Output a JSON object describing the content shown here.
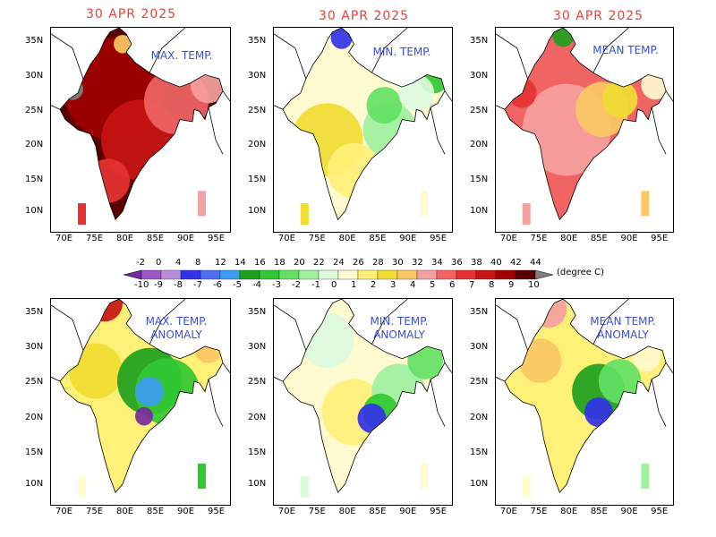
{
  "dates": [
    "30 APR 2025",
    "30 APR 2025",
    "30 APR 2025"
  ],
  "panels": [
    {
      "title": "MAX. TEMP.",
      "kind": "max"
    },
    {
      "title": "MIN. TEMP.",
      "kind": "min"
    },
    {
      "title": "MEAN TEMP.",
      "kind": "mean"
    },
    {
      "title": "MAX. TEMP.\nANOMALY",
      "kind": "amax"
    },
    {
      "title": "MIN. TEMP.\nANOMALY",
      "kind": "amin"
    },
    {
      "title": "MEAN TEMP.\nANOMALY",
      "kind": "amean"
    }
  ],
  "axes": {
    "lat_ticks": [
      "35N",
      "30N",
      "25N",
      "20N",
      "15N",
      "10N"
    ],
    "lon_ticks": [
      "70E",
      "75E",
      "80E",
      "85E",
      "90E",
      "95E"
    ]
  },
  "colorbar": {
    "unit": "(degree C)",
    "temp_labels": [
      "-2",
      "0",
      "4",
      "8",
      "12",
      "14",
      "16",
      "18",
      "20",
      "22",
      "24",
      "26",
      "28",
      "30",
      "32",
      "34",
      "36",
      "38",
      "40",
      "42",
      "44"
    ],
    "anom_labels": [
      "-10",
      "-9",
      "-8",
      "-7",
      "-6",
      "-5",
      "-4",
      "-3",
      "-2",
      "-1",
      "0",
      "1",
      "2",
      "3",
      "4",
      "5",
      "6",
      "7",
      "8",
      "9",
      "10"
    ],
    "colors": [
      "#7a2aa0",
      "#9a58c4",
      "#b98ed8",
      "#3232e6",
      "#4f6ef0",
      "#3c9cf0",
      "#1ea01e",
      "#32c832",
      "#64e164",
      "#a0f0a0",
      "#dcfadc",
      "#fffad0",
      "#fff078",
      "#f0dc32",
      "#fac864",
      "#f5a0a0",
      "#f06464",
      "#e63232",
      "#c81414",
      "#a00000",
      "#5a0000",
      "#808080"
    ]
  }
}
